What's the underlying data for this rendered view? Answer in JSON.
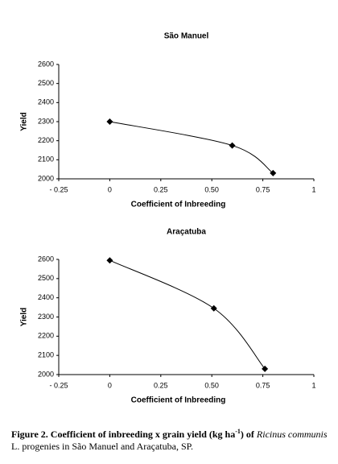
{
  "chart_data": [
    {
      "type": "line",
      "title": "São Manuel",
      "xlabel": "Coefficient of Inbreeding",
      "ylabel": "Yield",
      "x": [
        0,
        0.6,
        0.8
      ],
      "series": [
        {
          "color": "#000000",
          "values": [
            2300,
            2175,
            2030
          ]
        }
      ],
      "xlim": [
        -0.25,
        1
      ],
      "xticks": [
        {
          "value": -0.25,
          "label": "- 0.25"
        },
        0,
        0.25,
        {
          "value": 0.5,
          "label": "0.50"
        },
        0.75,
        1
      ],
      "ylim": [
        2000,
        2600
      ],
      "yticks": [
        2000,
        2100,
        2200,
        2300,
        2400,
        2500,
        2600
      ],
      "grid": false
    },
    {
      "type": "line",
      "title": "Araçatuba",
      "xlabel": "Coefficient of Inbreeding",
      "ylabel": "Yield",
      "x": [
        0,
        0.51,
        0.76
      ],
      "series": [
        {
          "color": "#000000",
          "values": [
            2595,
            2345,
            2030
          ]
        }
      ],
      "xlim": [
        -0.25,
        1
      ],
      "xticks": [
        {
          "value": -0.25,
          "label": "- 0.25"
        },
        0,
        0.25,
        {
          "value": 0.5,
          "label": "0.50"
        },
        0.75,
        1
      ],
      "ylim": [
        2000,
        2600
      ],
      "yticks": [
        2000,
        2100,
        2200,
        2300,
        2400,
        2500,
        2600
      ],
      "grid": false
    }
  ],
  "caption": {
    "label": "Figure 2",
    "text_1": ". Coefficient of inbreeding x grain yield (kg ha",
    "superscript": "-1",
    "text_2": ") of ",
    "species": "Ricinus communis",
    "text_3": " L. progenies in São Manuel and Araçatuba, SP."
  }
}
